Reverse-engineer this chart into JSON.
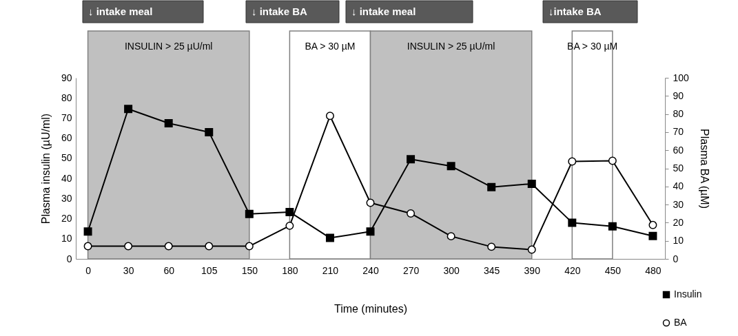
{
  "chart_data": {
    "type": "line",
    "xlabel": "Time (minutes)",
    "ylabel": "Plasma insulin (µU/ml)",
    "y2label": "Plasma BA (µM)",
    "categories": [
      "0",
      "30",
      "60",
      "105",
      "150",
      "180",
      "210",
      "240",
      "270",
      "300",
      "345",
      "390",
      "420",
      "450",
      "480"
    ],
    "series": [
      {
        "name": "Insulin",
        "color": "#000000",
        "marker": "square",
        "values": [
          13.6,
          74.5,
          67.4,
          63,
          22.3,
          23.3,
          10.4,
          13.6,
          49.5,
          46.1,
          35.7,
          37.3,
          18,
          16.2,
          11.4
        ]
      },
      {
        "name": "BA",
        "color": "#000000",
        "marker": "circle",
        "axis": "y2",
        "values": [
          7,
          7,
          7,
          7,
          7,
          18.3,
          79,
          31,
          25.1,
          12.5,
          6.7,
          5.1,
          53.8,
          54.2,
          18.7
        ]
      }
    ],
    "ylim": [
      0,
      90
    ],
    "yticks": [
      0,
      10,
      20,
      30,
      40,
      50,
      60,
      70,
      80,
      90
    ],
    "y2lim": [
      0,
      100
    ],
    "y2ticks": [
      0,
      10,
      20,
      30,
      40,
      50,
      60,
      70,
      80,
      90,
      100
    ],
    "bands": [
      {
        "axis": "x",
        "from": "0",
        "to": "150",
        "label": "INSULIN > 25 µU/ml",
        "color": "#c0c0c0"
      },
      {
        "axis": "x",
        "from": "180",
        "to": "240",
        "label": "BA > 30 µM",
        "color": "#ffffff"
      },
      {
        "axis": "x",
        "from": "240",
        "to": "390",
        "label": "INSULIN > 25 µU/ml",
        "color": "#c0c0c0"
      },
      {
        "axis": "x",
        "from": "420",
        "to": "450",
        "label": "BA > 30 µM",
        "color": "#ffffff"
      }
    ],
    "annotations": [
      "↓ intake meal",
      "↓ intake BA",
      "↓ intake meal",
      "↓intake BA"
    ],
    "grid": false,
    "legend": "bottom right"
  }
}
